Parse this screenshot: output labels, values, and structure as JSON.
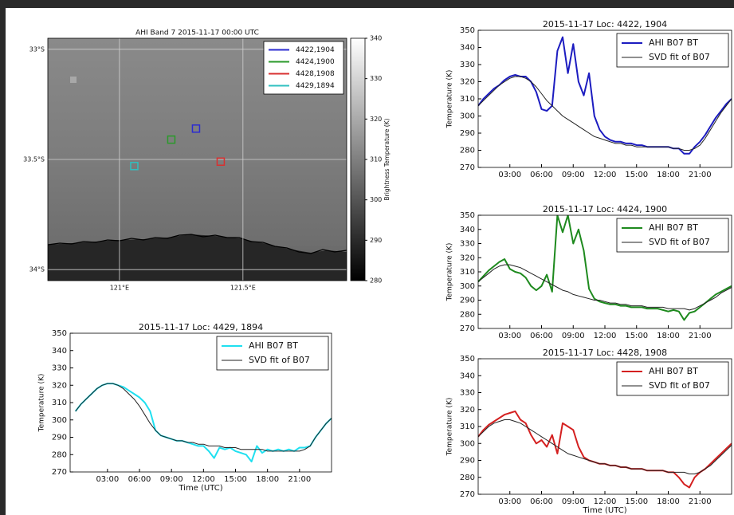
{
  "chart_data": [
    {
      "type": "map",
      "title": "AHI Band 7 2015-11-17 00:00 UTC",
      "xlim": [
        120.71,
        121.92
      ],
      "ylim": [
        -34.05,
        -32.95
      ],
      "xticks": [
        {
          "value": 121,
          "label": "121°E"
        },
        {
          "value": 121.5,
          "label": "121.5°E"
        }
      ],
      "yticks": [
        {
          "value": -33,
          "label": "33°S"
        },
        {
          "value": -33.5,
          "label": "33.5°S"
        },
        {
          "value": -34,
          "label": "34°S"
        }
      ],
      "grid": true,
      "legend": "upper right",
      "series": [
        {
          "name": "4422,1904",
          "color": "#2b2bd0",
          "x": [
            121.31
          ],
          "y": [
            -33.36
          ]
        },
        {
          "name": "4424,1900",
          "color": "#2a9a2a",
          "x": [
            121.21
          ],
          "y": [
            -33.41
          ]
        },
        {
          "name": "4428,1908",
          "color": "#d83030",
          "x": [
            121.41
          ],
          "y": [
            -33.51
          ]
        },
        {
          "name": "4429,1894",
          "color": "#30c0c0",
          "x": [
            121.06
          ],
          "y": [
            -33.53
          ]
        }
      ],
      "colorbar": {
        "label": "Brightness Temperature (K)",
        "lim": [
          280,
          340
        ],
        "ticks": [
          280,
          290,
          300,
          310,
          320,
          330,
          340
        ]
      }
    },
    {
      "type": "line",
      "title": "2015-11-17 Loc: 4422, 1904",
      "ylabel": "Temperature (K)",
      "x": [
        0,
        0.5,
        1,
        1.5,
        2,
        2.5,
        3,
        3.5,
        4,
        4.5,
        5,
        5.5,
        6,
        6.5,
        7,
        7.5,
        8,
        8.5,
        9,
        9.5,
        10,
        10.5,
        11,
        11.5,
        12,
        12.5,
        13,
        13.5,
        14,
        14.5,
        15,
        15.5,
        16,
        16.5,
        17,
        17.5,
        18,
        18.5,
        19,
        19.5,
        20,
        20.5,
        21,
        21.5,
        22,
        22.5,
        23,
        23.5,
        24
      ],
      "xlim": [
        0,
        24
      ],
      "ylim": [
        270,
        350
      ],
      "xticks": [
        {
          "value": 3,
          "label": "03:00"
        },
        {
          "value": 6,
          "label": "06:00"
        },
        {
          "value": 9,
          "label": "09:00"
        },
        {
          "value": 12,
          "label": "12:00"
        },
        {
          "value": 15,
          "label": "15:00"
        },
        {
          "value": 18,
          "label": "18:00"
        },
        {
          "value": 21,
          "label": "21:00"
        }
      ],
      "yticks": [
        270,
        280,
        290,
        300,
        310,
        320,
        330,
        340,
        350
      ],
      "legend": "upper right",
      "series": [
        {
          "name": "AHI B07 BT",
          "color": "#1c1cc0",
          "values": [
            306,
            310,
            313,
            316,
            318,
            321,
            323,
            324,
            323,
            323,
            320,
            314,
            304,
            303,
            306,
            338,
            346,
            325,
            342,
            320,
            312,
            325,
            300,
            292,
            288,
            286,
            285,
            285,
            284,
            284,
            283,
            283,
            282,
            282,
            282,
            282,
            282,
            281,
            281,
            278,
            278,
            282,
            285,
            289,
            294,
            299,
            303,
            307,
            310
          ]
        },
        {
          "name": "SVD fit of B07",
          "color": "#222222",
          "values": [
            306,
            309,
            312,
            315,
            318,
            320,
            322,
            323,
            323,
            322,
            320,
            317,
            313,
            309,
            306,
            303,
            300,
            298,
            296,
            294,
            292,
            290,
            288,
            287,
            286,
            285,
            284,
            284,
            283,
            283,
            282,
            282,
            282,
            282,
            282,
            282,
            282,
            281,
            281,
            280,
            280,
            281,
            283,
            287,
            292,
            297,
            302,
            306,
            310
          ]
        }
      ]
    },
    {
      "type": "line",
      "title": "2015-11-17 Loc: 4424, 1900",
      "ylabel": "Temperature (K)",
      "x": [
        0,
        0.5,
        1,
        1.5,
        2,
        2.5,
        3,
        3.5,
        4,
        4.5,
        5,
        5.5,
        6,
        6.5,
        7,
        7.5,
        8,
        8.5,
        9,
        9.5,
        10,
        10.5,
        11,
        11.5,
        12,
        12.5,
        13,
        13.5,
        14,
        14.5,
        15,
        15.5,
        16,
        16.5,
        17,
        17.5,
        18,
        18.5,
        19,
        19.5,
        20,
        20.5,
        21,
        21.5,
        22,
        22.5,
        23,
        23.5,
        24
      ],
      "xlim": [
        0,
        24
      ],
      "ylim": [
        270,
        350
      ],
      "xticks": [
        {
          "value": 3,
          "label": "03:00"
        },
        {
          "value": 6,
          "label": "06:00"
        },
        {
          "value": 9,
          "label": "09:00"
        },
        {
          "value": 12,
          "label": "12:00"
        },
        {
          "value": 15,
          "label": "15:00"
        },
        {
          "value": 18,
          "label": "18:00"
        },
        {
          "value": 21,
          "label": "21:00"
        }
      ],
      "yticks": [
        270,
        280,
        290,
        300,
        310,
        320,
        330,
        340,
        350
      ],
      "legend": "upper right",
      "series": [
        {
          "name": "AHI B07 BT",
          "color": "#1e8a1e",
          "values": [
            303,
            307,
            311,
            314,
            317,
            319,
            312,
            310,
            309,
            306,
            300,
            297,
            300,
            308,
            296,
            350,
            338,
            350,
            330,
            340,
            325,
            298,
            291,
            289,
            288,
            287,
            287,
            286,
            286,
            285,
            285,
            285,
            284,
            284,
            284,
            283,
            282,
            283,
            282,
            276,
            281,
            282,
            285,
            288,
            291,
            294,
            296,
            298,
            300
          ]
        },
        {
          "name": "SVD fit of B07",
          "color": "#222222",
          "values": [
            303,
            306,
            309,
            312,
            314,
            315,
            315,
            314,
            313,
            311,
            309,
            307,
            305,
            303,
            301,
            299,
            297,
            296,
            294,
            293,
            292,
            291,
            290,
            290,
            289,
            288,
            288,
            287,
            287,
            286,
            286,
            286,
            285,
            285,
            285,
            285,
            284,
            284,
            284,
            284,
            283,
            284,
            286,
            288,
            290,
            292,
            295,
            297,
            299
          ]
        }
      ]
    },
    {
      "type": "line",
      "title": "2015-11-17 Loc: 4428, 1908",
      "ylabel": "Temperature (K)",
      "xlabel": "Time (UTC)",
      "x": [
        0,
        0.5,
        1,
        1.5,
        2,
        2.5,
        3,
        3.5,
        4,
        4.5,
        5,
        5.5,
        6,
        6.5,
        7,
        7.5,
        8,
        8.5,
        9,
        9.5,
        10,
        10.5,
        11,
        11.5,
        12,
        12.5,
        13,
        13.5,
        14,
        14.5,
        15,
        15.5,
        16,
        16.5,
        17,
        17.5,
        18,
        18.5,
        19,
        19.5,
        20,
        20.5,
        21,
        21.5,
        22,
        22.5,
        23,
        23.5,
        24
      ],
      "xlim": [
        0,
        24
      ],
      "ylim": [
        270,
        350
      ],
      "xticks": [
        {
          "value": 3,
          "label": "03:00"
        },
        {
          "value": 6,
          "label": "06:00"
        },
        {
          "value": 9,
          "label": "09:00"
        },
        {
          "value": 12,
          "label": "12:00"
        },
        {
          "value": 15,
          "label": "15:00"
        },
        {
          "value": 18,
          "label": "18:00"
        },
        {
          "value": 21,
          "label": "21:00"
        }
      ],
      "yticks": [
        270,
        280,
        290,
        300,
        310,
        320,
        330,
        340,
        350
      ],
      "legend": "upper right",
      "series": [
        {
          "name": "AHI B07 BT",
          "color": "#d42020",
          "values": [
            304,
            308,
            311,
            313,
            315,
            317,
            318,
            319,
            314,
            312,
            305,
            300,
            302,
            298,
            305,
            294,
            312,
            310,
            308,
            298,
            292,
            290,
            289,
            288,
            288,
            287,
            287,
            286,
            286,
            285,
            285,
            285,
            284,
            284,
            284,
            284,
            283,
            283,
            280,
            276,
            274,
            280,
            283,
            285,
            288,
            291,
            294,
            297,
            300
          ]
        },
        {
          "name": "SVD fit of B07",
          "color": "#222222",
          "values": [
            304,
            307,
            310,
            312,
            313,
            314,
            314,
            313,
            312,
            310,
            308,
            306,
            304,
            302,
            300,
            298,
            296,
            294,
            293,
            292,
            291,
            290,
            289,
            288,
            288,
            287,
            287,
            286,
            286,
            285,
            285,
            285,
            284,
            284,
            284,
            284,
            283,
            283,
            283,
            283,
            282,
            282,
            283,
            285,
            287,
            290,
            293,
            296,
            299
          ]
        }
      ]
    },
    {
      "type": "line",
      "title": "2015-11-17 Loc: 4429, 1894",
      "ylabel": "Temperature (K)",
      "xlabel": "Time (UTC)",
      "x": [
        0,
        0.5,
        1,
        1.5,
        2,
        2.5,
        3,
        3.5,
        4,
        4.5,
        5,
        5.5,
        6,
        6.5,
        7,
        7.5,
        8,
        8.5,
        9,
        9.5,
        10,
        10.5,
        11,
        11.5,
        12,
        12.5,
        13,
        13.5,
        14,
        14.5,
        15,
        15.5,
        16,
        16.5,
        17,
        17.5,
        18,
        18.5,
        19,
        19.5,
        20,
        20.5,
        21,
        21.5,
        22,
        22.5,
        23,
        23.5,
        24
      ],
      "xlim": [
        -0.5,
        24
      ],
      "ylim": [
        270,
        350
      ],
      "xticks": [
        {
          "value": 3,
          "label": "03:00"
        },
        {
          "value": 6,
          "label": "06:00"
        },
        {
          "value": 9,
          "label": "09:00"
        },
        {
          "value": 12,
          "label": "12:00"
        },
        {
          "value": 15,
          "label": "15:00"
        },
        {
          "value": 18,
          "label": "18:00"
        },
        {
          "value": 21,
          "label": "21:00"
        }
      ],
      "yticks": [
        270,
        280,
        290,
        300,
        310,
        320,
        330,
        340,
        350
      ],
      "legend": "upper right",
      "series": [
        {
          "name": "AHI B07 BT",
          "color": "#20e0f0",
          "values": [
            305,
            309,
            312,
            315,
            318,
            320,
            321,
            321,
            320,
            319,
            317,
            315,
            313,
            310,
            305,
            294,
            291,
            290,
            289,
            288,
            288,
            287,
            286,
            285,
            285,
            282,
            278,
            284,
            283,
            284,
            282,
            281,
            280,
            276,
            285,
            281,
            283,
            282,
            283,
            282,
            283,
            282,
            284,
            284,
            285,
            290,
            294,
            298,
            301
          ]
        },
        {
          "name": "SVD fit of B07",
          "color": "#222222",
          "values": [
            305,
            309,
            312,
            315,
            318,
            320,
            321,
            321,
            320,
            318,
            315,
            312,
            308,
            303,
            298,
            294,
            291,
            290,
            289,
            288,
            288,
            287,
            287,
            286,
            286,
            285,
            285,
            285,
            284,
            284,
            284,
            283,
            283,
            283,
            283,
            283,
            282,
            282,
            282,
            282,
            282,
            282,
            282,
            283,
            285,
            290,
            294,
            298,
            301
          ]
        }
      ]
    }
  ]
}
